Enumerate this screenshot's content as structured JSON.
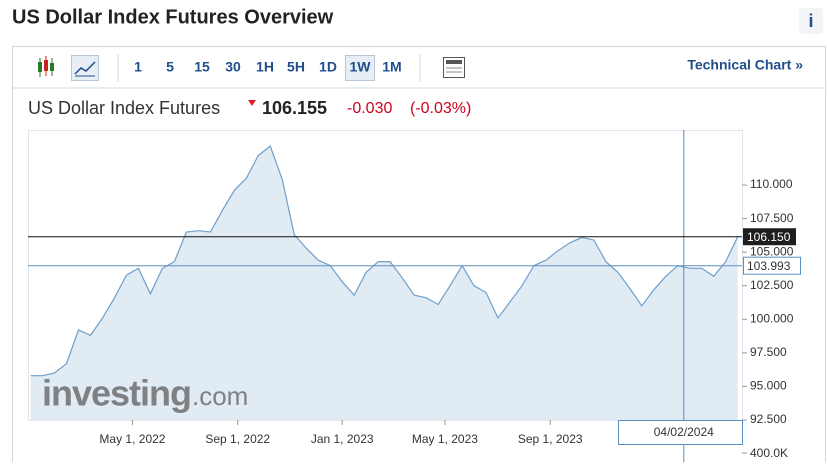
{
  "header": {
    "title": "US Dollar Index Futures Overview",
    "info": "i"
  },
  "toolbar": {
    "intervals": [
      "1",
      "5",
      "15",
      "30",
      "1H",
      "5H",
      "1D",
      "1W",
      "1M"
    ],
    "selected": 7,
    "link": "Technical Chart »"
  },
  "quote": {
    "name": "US Dollar Index Futures",
    "price": "106.155",
    "change": "-0.030",
    "change_pct": "(-0.03%)"
  },
  "chart_data": {
    "type": "area",
    "x": [
      "2022-01-02",
      "2022-01-16",
      "2022-01-30",
      "2022-02-13",
      "2022-02-27",
      "2022-03-13",
      "2022-03-27",
      "2022-04-10",
      "2022-04-24",
      "2022-05-08",
      "2022-05-22",
      "2022-06-05",
      "2022-06-19",
      "2022-07-03",
      "2022-07-17",
      "2022-07-31",
      "2022-08-14",
      "2022-08-28",
      "2022-09-11",
      "2022-09-25",
      "2022-10-09",
      "2022-10-23",
      "2022-11-06",
      "2022-11-20",
      "2022-12-04",
      "2022-12-18",
      "2023-01-01",
      "2023-01-15",
      "2023-01-29",
      "2023-02-12",
      "2023-02-26",
      "2023-03-12",
      "2023-03-26",
      "2023-04-09",
      "2023-04-23",
      "2023-05-07",
      "2023-05-21",
      "2023-06-04",
      "2023-06-18",
      "2023-07-02",
      "2023-07-16",
      "2023-07-30",
      "2023-08-13",
      "2023-08-27",
      "2023-09-10",
      "2023-09-24",
      "2023-10-08",
      "2023-10-22",
      "2023-11-05",
      "2023-11-19",
      "2023-12-03",
      "2023-12-17",
      "2023-12-31",
      "2024-01-14",
      "2024-01-28",
      "2024-02-11",
      "2024-02-25",
      "2024-03-10",
      "2024-03-24",
      "2024-04-07"
    ],
    "values": [
      95.8,
      95.8,
      96.0,
      96.7,
      99.2,
      98.8,
      100.1,
      101.6,
      103.3,
      103.8,
      101.9,
      103.8,
      104.3,
      106.5,
      106.6,
      106.5,
      108.1,
      109.6,
      110.5,
      112.2,
      112.9,
      110.4,
      106.3,
      105.3,
      104.4,
      104.0,
      102.8,
      101.8,
      103.5,
      104.3,
      104.3,
      103.1,
      101.8,
      101.6,
      101.1,
      102.5,
      104.0,
      102.5,
      102.0,
      100.1,
      101.3,
      102.5,
      104.0,
      104.4,
      105.1,
      105.7,
      106.1,
      105.9,
      104.3,
      103.5,
      102.3,
      101.0,
      102.2,
      103.2,
      104.0,
      103.8,
      103.8,
      103.2,
      104.3,
      106.15
    ],
    "color": "#6f9fcb",
    "fill": "#e1ebf3",
    "xlim": [
      "2021-12-30",
      "2024-04-12"
    ],
    "xticks": [
      {
        "value": "2022-05-01",
        "label": "May 1, 2022"
      },
      {
        "value": "2022-09-01",
        "label": "Sep 1, 2022"
      },
      {
        "value": "2023-01-01",
        "label": "Jan 1, 2023"
      },
      {
        "value": "2023-05-01",
        "label": "May 1, 2023"
      },
      {
        "value": "2023-09-01",
        "label": "Sep 1, 2023"
      }
    ],
    "ylim": [
      92.5,
      114.1
    ],
    "yticks": [
      {
        "value": 92.5,
        "label": "92.500"
      },
      {
        "value": 95,
        "label": "95.000"
      },
      {
        "value": 97.5,
        "label": "97.500"
      },
      {
        "value": 100,
        "label": "100.000"
      },
      {
        "value": 102.5,
        "label": "102.500"
      },
      {
        "value": 105,
        "label": "105.000"
      },
      {
        "value": 107.5,
        "label": "107.500"
      },
      {
        "value": 110,
        "label": "110.000"
      }
    ],
    "last_price": {
      "value": 106.15,
      "label": "106.150"
    },
    "crosshair": {
      "x": {
        "value": "2024-02-04",
        "label": "04/02/2024"
      },
      "y": 103.993
    },
    "volume_ticks": [
      {
        "value": 400000,
        "label": "400.0K"
      }
    ],
    "watermark": {
      "brand": "investing",
      "suffix": ".com"
    }
  }
}
